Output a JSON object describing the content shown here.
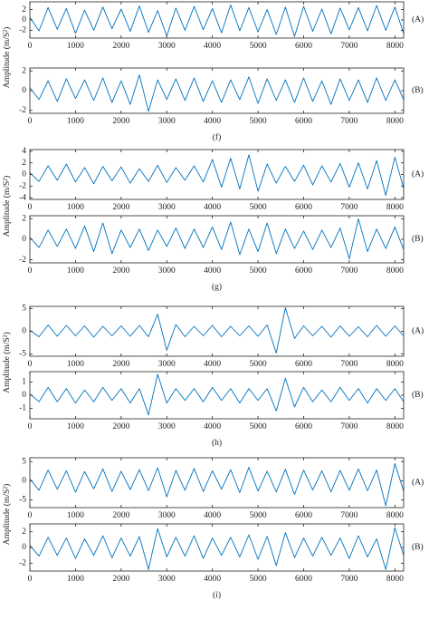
{
  "chart_data": [
    {
      "type": "line",
      "y_label": "Amplitude (m/S²)",
      "label": "(A)",
      "color": "#0072bd",
      "xlim": [
        0,
        8192
      ],
      "xticks": [
        0,
        1000,
        2000,
        3000,
        4000,
        5000,
        6000,
        7000,
        8000
      ],
      "ylim": [
        -3.5,
        3.5
      ],
      "yticks": [
        -2,
        0,
        2
      ],
      "x": [
        0,
        200,
        400,
        600,
        800,
        1000,
        1200,
        1400,
        1600,
        1800,
        2000,
        2200,
        2400,
        2600,
        2800,
        3000,
        3200,
        3400,
        3600,
        3800,
        4000,
        4200,
        4400,
        4600,
        4800,
        5000,
        5200,
        5400,
        5600,
        5800,
        6000,
        6200,
        6400,
        6600,
        6800,
        7000,
        7200,
        7400,
        7600,
        7800,
        8000,
        8192
      ],
      "values": [
        0.5,
        -2.1,
        2.4,
        -1.8,
        2.2,
        -2.6,
        1.9,
        -2.0,
        2.5,
        -1.7,
        2.1,
        -2.2,
        2.7,
        -2.4,
        1.8,
        -3.1,
        2.3,
        -2.0,
        2.6,
        -1.9,
        2.2,
        -2.5,
        2.9,
        -2.1,
        2.4,
        -2.3,
        2.0,
        -2.8,
        2.5,
        -3.2,
        2.6,
        -2.2,
        2.1,
        -2.7,
        2.3,
        -1.9,
        2.4,
        -2.1,
        2.8,
        -2.0,
        2.5,
        -2.6
      ]
    },
    {
      "type": "line",
      "label": "(B)",
      "caption": "(f)",
      "color": "#0072bd",
      "xlim": [
        0,
        8192
      ],
      "xticks": [
        0,
        1000,
        2000,
        3000,
        4000,
        5000,
        6000,
        7000,
        8000
      ],
      "ylim": [
        -2.3,
        2.3
      ],
      "yticks": [
        -2,
        0,
        2
      ],
      "x": [
        0,
        200,
        400,
        600,
        800,
        1000,
        1200,
        1400,
        1600,
        1800,
        2000,
        2200,
        2400,
        2600,
        2800,
        3000,
        3200,
        3400,
        3600,
        3800,
        4000,
        4200,
        4400,
        4600,
        4800,
        5000,
        5200,
        5400,
        5600,
        5800,
        6000,
        6200,
        6400,
        6600,
        6800,
        7000,
        7200,
        7400,
        7600,
        7800,
        8000,
        8192
      ],
      "values": [
        0.3,
        -0.9,
        1.0,
        -1.1,
        1.2,
        -0.8,
        1.1,
        -1.0,
        1.3,
        -1.2,
        1.0,
        -1.4,
        1.6,
        -2.1,
        1.1,
        -0.9,
        1.2,
        -1.0,
        1.3,
        -1.1,
        1.0,
        -1.2,
        1.1,
        -0.9,
        1.4,
        -1.3,
        1.2,
        -1.0,
        1.1,
        -1.2,
        1.3,
        -1.1,
        1.0,
        -1.4,
        1.2,
        -1.0,
        1.1,
        -1.2,
        1.3,
        -1.0,
        1.1,
        -0.9
      ]
    },
    {
      "type": "line",
      "y_label": "Amplitude (m/S²)",
      "label": "(A)",
      "color": "#0072bd",
      "xlim": [
        0,
        8192
      ],
      "xticks": [
        0,
        1000,
        2000,
        3000,
        4000,
        5000,
        6000,
        7000,
        8000
      ],
      "ylim": [
        -4.3,
        4.3
      ],
      "yticks": [
        -4,
        -2,
        0,
        2,
        4
      ],
      "x": [
        0,
        200,
        400,
        600,
        800,
        1000,
        1200,
        1400,
        1600,
        1800,
        2000,
        2200,
        2400,
        2600,
        2800,
        3000,
        3200,
        3400,
        3600,
        3800,
        4000,
        4200,
        4400,
        4600,
        4800,
        5000,
        5200,
        5400,
        5600,
        5800,
        6000,
        6200,
        6400,
        6600,
        6800,
        7000,
        7200,
        7400,
        7600,
        7800,
        8000,
        8192
      ],
      "values": [
        0.3,
        -1.2,
        1.5,
        -1.0,
        1.8,
        -1.3,
        1.2,
        -1.6,
        1.4,
        -1.1,
        1.3,
        -1.5,
        1.0,
        -1.2,
        1.6,
        -1.4,
        1.2,
        -1.0,
        1.5,
        -1.3,
        2.6,
        -2.2,
        2.8,
        -2.5,
        3.4,
        -2.9,
        1.8,
        -1.5,
        1.4,
        -1.2,
        1.6,
        -1.8,
        1.5,
        -1.3,
        1.9,
        -2.2,
        2.0,
        -2.5,
        2.4,
        -3.6,
        3.0,
        -2.4
      ]
    },
    {
      "type": "line",
      "label": "(B)",
      "caption": "(g)",
      "color": "#0072bd",
      "xlim": [
        0,
        8192
      ],
      "xticks": [
        0,
        1000,
        2000,
        3000,
        4000,
        5000,
        6000,
        7000,
        8000
      ],
      "ylim": [
        -2.3,
        2.3
      ],
      "yticks": [
        -2,
        0,
        2
      ],
      "x": [
        0,
        200,
        400,
        600,
        800,
        1000,
        1200,
        1400,
        1600,
        1800,
        2000,
        2200,
        2400,
        2600,
        2800,
        3000,
        3200,
        3400,
        3600,
        3800,
        4000,
        4200,
        4400,
        4600,
        4800,
        5000,
        5200,
        5400,
        5600,
        5800,
        6000,
        6200,
        6400,
        6600,
        6800,
        7000,
        7200,
        7400,
        7600,
        7800,
        8000,
        8192
      ],
      "values": [
        0.2,
        -0.8,
        0.9,
        -0.7,
        1.0,
        -0.9,
        1.3,
        -1.2,
        1.6,
        -1.4,
        0.9,
        -0.8,
        1.0,
        -1.1,
        0.9,
        -0.7,
        1.1,
        -0.9,
        1.0,
        -0.8,
        1.2,
        -1.0,
        1.7,
        -1.5,
        1.0,
        -1.2,
        1.6,
        -1.4,
        1.0,
        -0.9,
        0.8,
        -1.0,
        0.9,
        -0.8,
        1.1,
        -1.9,
        2.0,
        -1.2,
        1.0,
        -0.9,
        1.2,
        -1.0
      ]
    },
    {
      "type": "line",
      "y_label": "Amplitude (m/S²)",
      "label": "(A)",
      "color": "#0072bd",
      "xlim": [
        0,
        8192
      ],
      "xticks": [
        0,
        1000,
        2000,
        3000,
        4000,
        5000,
        6000,
        7000,
        8000
      ],
      "ylim": [
        -5.5,
        5.5
      ],
      "yticks": [
        -5,
        0,
        5
      ],
      "x": [
        0,
        200,
        400,
        600,
        800,
        1000,
        1200,
        1400,
        1600,
        1800,
        2000,
        2200,
        2400,
        2600,
        2800,
        3000,
        3200,
        3400,
        3600,
        3800,
        4000,
        4200,
        4400,
        4600,
        4800,
        5000,
        5200,
        5400,
        5600,
        5800,
        6000,
        6200,
        6400,
        6600,
        6800,
        7000,
        7200,
        7400,
        7600,
        7800,
        8000,
        8192
      ],
      "values": [
        0.2,
        -1.2,
        1.4,
        -1.1,
        1.3,
        -1.0,
        1.2,
        -1.3,
        1.1,
        -1.0,
        1.2,
        -1.1,
        1.3,
        -1.2,
        3.8,
        -4.2,
        1.5,
        -1.2,
        1.1,
        -1.0,
        1.3,
        -1.2,
        1.1,
        -1.0,
        1.2,
        -1.1,
        1.4,
        -4.8,
        5.2,
        -1.6,
        1.2,
        -1.0,
        1.1,
        -1.3,
        1.2,
        -1.1,
        1.0,
        -1.2,
        1.3,
        -1.1,
        1.2,
        -1.0
      ]
    },
    {
      "type": "line",
      "label": "(B)",
      "caption": "(h)",
      "color": "#0072bd",
      "xlim": [
        0,
        8192
      ],
      "xticks": [
        0,
        1000,
        2000,
        3000,
        4000,
        5000,
        6000,
        7000,
        8000
      ],
      "ylim": [
        -1.8,
        1.8
      ],
      "yticks": [
        -1,
        0,
        1
      ],
      "x": [
        0,
        200,
        400,
        600,
        800,
        1000,
        1200,
        1400,
        1600,
        1800,
        2000,
        2200,
        2400,
        2600,
        2800,
        3000,
        3200,
        3400,
        3600,
        3800,
        4000,
        4200,
        4400,
        4600,
        4800,
        5000,
        5200,
        5400,
        5600,
        5800,
        6000,
        6200,
        6400,
        6600,
        6800,
        7000,
        7200,
        7400,
        7600,
        7800,
        8000,
        8192
      ],
      "values": [
        0.1,
        -0.5,
        0.6,
        -0.5,
        0.5,
        -0.6,
        0.4,
        -0.5,
        0.6,
        -0.4,
        0.5,
        -0.6,
        0.5,
        -1.5,
        1.6,
        -0.6,
        0.5,
        -0.4,
        0.5,
        -0.5,
        0.6,
        -0.4,
        0.5,
        -0.6,
        0.5,
        -0.4,
        0.5,
        -1.2,
        1.3,
        -0.9,
        0.6,
        -0.5,
        0.4,
        -0.5,
        0.6,
        -0.4,
        0.5,
        -0.6,
        0.5,
        -0.4,
        0.5,
        -0.5
      ]
    },
    {
      "type": "line",
      "y_label": "Amplitude (m/S²)",
      "label": "(A)",
      "color": "#0072bd",
      "xlim": [
        0,
        8192
      ],
      "xticks": [
        0,
        1000,
        2000,
        3000,
        4000,
        5000,
        6000,
        7000,
        8000
      ],
      "ylim": [
        -7,
        6
      ],
      "yticks": [
        -5,
        0,
        5
      ],
      "x": [
        0,
        200,
        400,
        600,
        800,
        1000,
        1200,
        1400,
        1600,
        1800,
        2000,
        2200,
        2400,
        2600,
        2800,
        3000,
        3200,
        3400,
        3600,
        3800,
        4000,
        4200,
        4400,
        4600,
        4800,
        5000,
        5200,
        5400,
        5600,
        5800,
        6000,
        6200,
        6400,
        6600,
        6800,
        7000,
        7200,
        7400,
        7600,
        7800,
        8000,
        8192
      ],
      "values": [
        0.5,
        -2.5,
        2.8,
        -2.2,
        2.6,
        -3.0,
        2.4,
        -2.1,
        3.1,
        -2.8,
        2.5,
        -2.3,
        2.9,
        -2.6,
        3.4,
        -4.2,
        2.7,
        -2.5,
        3.2,
        -2.8,
        2.6,
        -2.2,
        2.9,
        -3.1,
        3.5,
        -2.7,
        2.5,
        -2.9,
        3.0,
        -3.6,
        2.8,
        -2.4,
        2.6,
        -2.9,
        2.7,
        -2.5,
        3.1,
        -2.6,
        2.8,
        -6.5,
        4.5,
        -2.7
      ]
    },
    {
      "type": "line",
      "label": "(B)",
      "caption": "(i)",
      "color": "#0072bd",
      "xlim": [
        0,
        8192
      ],
      "xticks": [
        0,
        1000,
        2000,
        3000,
        4000,
        5000,
        6000,
        7000,
        8000
      ],
      "ylim": [
        -3,
        3
      ],
      "yticks": [
        -2,
        0,
        2
      ],
      "x": [
        0,
        200,
        400,
        600,
        800,
        1000,
        1200,
        1400,
        1600,
        1800,
        2000,
        2200,
        2400,
        2600,
        2800,
        3000,
        3200,
        3400,
        3600,
        3800,
        4000,
        4200,
        4400,
        4600,
        4800,
        5000,
        5200,
        5400,
        5600,
        5800,
        6000,
        6200,
        6400,
        6600,
        6800,
        7000,
        7200,
        7400,
        7600,
        7800,
        8000,
        8192
      ],
      "values": [
        0.3,
        -1.1,
        1.3,
        -1.0,
        1.2,
        -1.4,
        1.1,
        -1.0,
        1.5,
        -1.3,
        1.2,
        -1.1,
        1.4,
        -2.8,
        2.4,
        -1.2,
        1.3,
        -1.1,
        1.5,
        -1.4,
        1.2,
        -1.0,
        1.3,
        -1.2,
        1.6,
        -1.5,
        1.4,
        -2.3,
        1.9,
        -1.3,
        1.2,
        -1.1,
        1.3,
        -1.0,
        1.2,
        -1.4,
        1.5,
        -1.2,
        1.1,
        -2.8,
        2.5,
        -1.0
      ]
    }
  ]
}
